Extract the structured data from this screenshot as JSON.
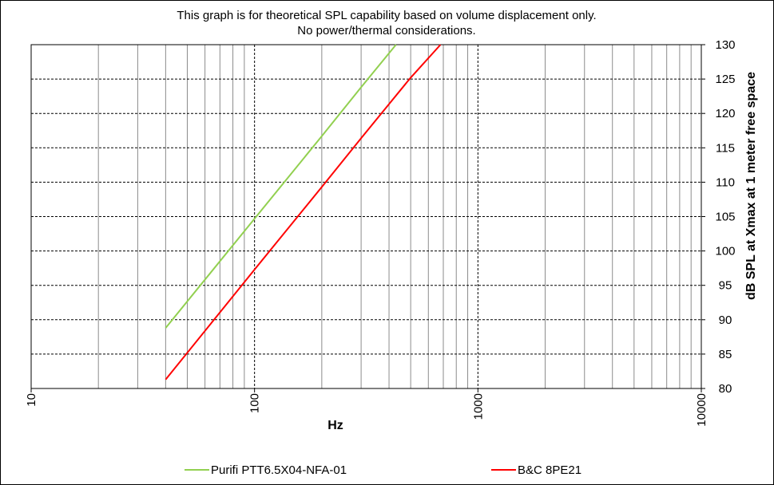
{
  "chart_data": {
    "type": "line",
    "title": [
      "This graph is for theoretical SPL capability based on volume displacement only.",
      "No power/thermal  considerations."
    ],
    "xlabel": "Hz",
    "ylabel": "dB SPL at Xmax at 1 meter free space",
    "x_scale": "log",
    "xlim": [
      10,
      10000
    ],
    "ylim": [
      80,
      130
    ],
    "x_ticks": [
      10,
      100,
      1000,
      10000
    ],
    "x_tick_labels": [
      "10",
      "100",
      "1000",
      "10000"
    ],
    "y_ticks": [
      80,
      85,
      90,
      95,
      100,
      105,
      110,
      115,
      120,
      125,
      130
    ],
    "y_tick_labels": [
      "80",
      "85",
      "90",
      "95",
      "100",
      "105",
      "110",
      "115",
      "120",
      "125",
      "130"
    ],
    "y_axis_side": "right",
    "grid": true,
    "legend_position": "bottom",
    "series": [
      {
        "name": "Purifi PTT6.5X04-NFA-01",
        "color": "#92D050",
        "x": [
          40,
          100,
          200,
          300,
          430
        ],
        "y": [
          88.8,
          104.7,
          116.7,
          123.8,
          130
        ]
      },
      {
        "name": "B&C 8PE21",
        "color": "#FF0000",
        "x": [
          40,
          100,
          200,
          300,
          500,
          680
        ],
        "y": [
          81.3,
          97.3,
          109.3,
          116.4,
          125.2,
          130
        ]
      }
    ]
  }
}
